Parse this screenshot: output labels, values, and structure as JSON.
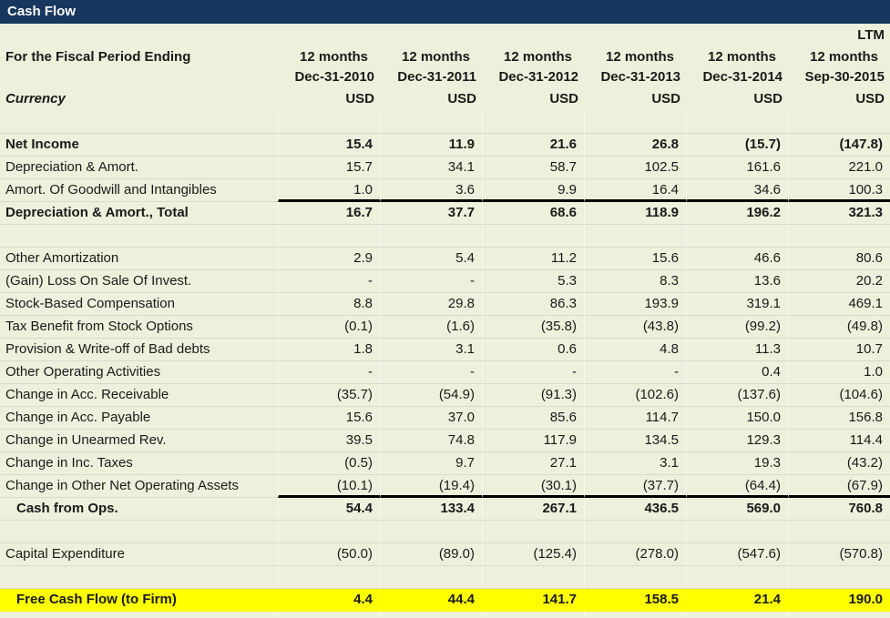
{
  "title": "Cash Flow",
  "colors": {
    "title_bar": "#17375e",
    "background": "#eef0dc",
    "highlight_row": "#ffff00",
    "thick_rule": "#000000",
    "gridline": "#d8dacb"
  },
  "header": {
    "fiscal_period_label": "For the Fiscal Period Ending",
    "currency_label": "Currency",
    "columns": [
      {
        "ltm": "",
        "period": "12 months",
        "date": "Dec-31-2010",
        "currency": "USD"
      },
      {
        "ltm": "",
        "period": "12 months",
        "date": "Dec-31-2011",
        "currency": "USD"
      },
      {
        "ltm": "",
        "period": "12 months",
        "date": "Dec-31-2012",
        "currency": "USD"
      },
      {
        "ltm": "",
        "period": "12 months",
        "date": "Dec-31-2013",
        "currency": "USD"
      },
      {
        "ltm": "",
        "period": "12 months",
        "date": "Dec-31-2014",
        "currency": "USD"
      },
      {
        "ltm": "LTM",
        "period": "12 months",
        "date": "Sep-30-2015",
        "currency": "USD"
      }
    ]
  },
  "rows": [
    {
      "type": "spacer",
      "label": "",
      "values": [
        "",
        "",
        "",
        "",
        "",
        ""
      ]
    },
    {
      "label": "Net Income",
      "bold": true,
      "values": [
        "15.4",
        "11.9",
        "21.6",
        "26.8",
        "(15.7)",
        "(147.8)"
      ]
    },
    {
      "label": "Depreciation & Amort.",
      "values": [
        "15.7",
        "34.1",
        "58.7",
        "102.5",
        "161.6",
        "221.0"
      ]
    },
    {
      "label": "Amort. Of Goodwill and Intangibles",
      "thick_bottom": true,
      "values": [
        "1.0",
        "3.6",
        "9.9",
        "16.4",
        "34.6",
        "100.3"
      ]
    },
    {
      "label": "Depreciation & Amort., Total",
      "bold": true,
      "values": [
        "16.7",
        "37.7",
        "68.6",
        "118.9",
        "196.2",
        "321.3"
      ]
    },
    {
      "type": "spacer",
      "label": "",
      "values": [
        "",
        "",
        "",
        "",
        "",
        ""
      ]
    },
    {
      "label": "Other Amortization",
      "values": [
        "2.9",
        "5.4",
        "11.2",
        "15.6",
        "46.6",
        "80.6"
      ]
    },
    {
      "label": "(Gain) Loss On Sale Of Invest.",
      "values": [
        "-",
        "-",
        "5.3",
        "8.3",
        "13.6",
        "20.2"
      ]
    },
    {
      "label": "Stock-Based Compensation",
      "values": [
        "8.8",
        "29.8",
        "86.3",
        "193.9",
        "319.1",
        "469.1"
      ]
    },
    {
      "label": "Tax Benefit from Stock Options",
      "values": [
        "(0.1)",
        "(1.6)",
        "(35.8)",
        "(43.8)",
        "(99.2)",
        "(49.8)"
      ]
    },
    {
      "label": "Provision & Write-off of Bad debts",
      "values": [
        "1.8",
        "3.1",
        "0.6",
        "4.8",
        "11.3",
        "10.7"
      ]
    },
    {
      "label": "Other Operating Activities",
      "values": [
        "-",
        "-",
        "-",
        "-",
        "0.4",
        "1.0"
      ]
    },
    {
      "label": "Change in Acc. Receivable",
      "values": [
        "(35.7)",
        "(54.9)",
        "(91.3)",
        "(102.6)",
        "(137.6)",
        "(104.6)"
      ]
    },
    {
      "label": "Change in Acc. Payable",
      "values": [
        "15.6",
        "37.0",
        "85.6",
        "114.7",
        "150.0",
        "156.8"
      ]
    },
    {
      "label": "Change in Unearmed Rev.",
      "values": [
        "39.5",
        "74.8",
        "117.9",
        "134.5",
        "129.3",
        "114.4"
      ]
    },
    {
      "label": "Change in Inc. Taxes",
      "values": [
        "(0.5)",
        "9.7",
        "27.1",
        "3.1",
        "19.3",
        "(43.2)"
      ]
    },
    {
      "label": "Change in Other Net Operating Assets",
      "thick_bottom": true,
      "values": [
        "(10.1)",
        "(19.4)",
        "(30.1)",
        "(37.7)",
        "(64.4)",
        "(67.9)"
      ]
    },
    {
      "label": "Cash from Ops.",
      "bold": true,
      "indent": true,
      "values": [
        "54.4",
        "133.4",
        "267.1",
        "436.5",
        "569.0",
        "760.8"
      ]
    },
    {
      "type": "spacer",
      "label": "",
      "values": [
        "",
        "",
        "",
        "",
        "",
        ""
      ]
    },
    {
      "label": "Capital Expenditure",
      "values": [
        "(50.0)",
        "(89.0)",
        "(125.4)",
        "(278.0)",
        "(547.6)",
        "(570.8)"
      ]
    },
    {
      "type": "spacer",
      "label": "",
      "values": [
        "",
        "",
        "",
        "",
        "",
        ""
      ]
    },
    {
      "label": "Free Cash Flow (to Firm)",
      "bold": true,
      "indent": true,
      "highlight": true,
      "values": [
        "4.4",
        "44.4",
        "141.7",
        "158.5",
        "21.4",
        "190.0"
      ]
    },
    {
      "type": "sliver",
      "label": "",
      "values": [
        "",
        "",
        "",
        "",
        "",
        ""
      ]
    }
  ]
}
